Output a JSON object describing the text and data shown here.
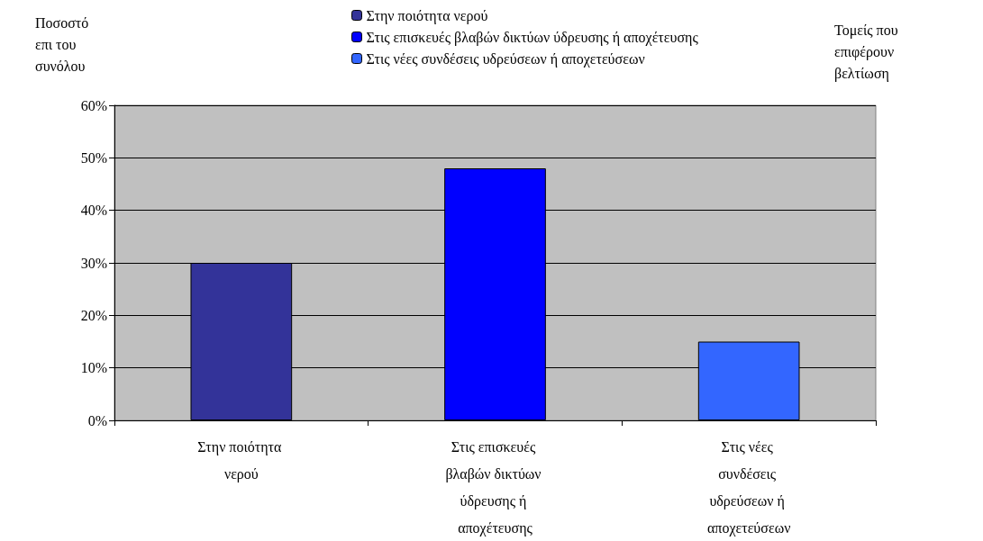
{
  "chart_data": {
    "type": "bar",
    "ylabel": "Ποσοστό επι του συνόλου",
    "xlabel": "Τομείς που επιφέρουν βελτίωση",
    "categories": [
      "Στην ποιότητα νερού",
      "Στις επισκευές βλαβών δικτύων ύδρευσης ή αποχέτευσης",
      "Στις νέες συνδέσεις υδρεύσεων ή αποχετεύσεων"
    ],
    "series": [
      {
        "name": "Στην ποιότητα νερού",
        "color": "#333399",
        "values": [
          30,
          null,
          null
        ]
      },
      {
        "name": "Στις επισκευές βλαβών δικτύων ύδρευσης ή αποχέτευσης",
        "color": "#0000ff",
        "values": [
          null,
          48,
          null
        ]
      },
      {
        "name": "Στις νέες συνδέσεις υδρεύσεων ή αποχετεύσεων",
        "color": "#3366ff",
        "values": [
          null,
          null,
          15
        ]
      }
    ],
    "stacked": true,
    "ylim": [
      0,
      60
    ],
    "yticks": [
      {
        "value": 0,
        "label": "0%"
      },
      {
        "value": 10,
        "label": "10%"
      },
      {
        "value": 20,
        "label": "20%"
      },
      {
        "value": 30,
        "label": "30%"
      },
      {
        "value": 40,
        "label": "40%"
      },
      {
        "value": 50,
        "label": "50%"
      },
      {
        "value": 60,
        "label": "60%"
      }
    ],
    "grid": "y",
    "legend": "top"
  }
}
